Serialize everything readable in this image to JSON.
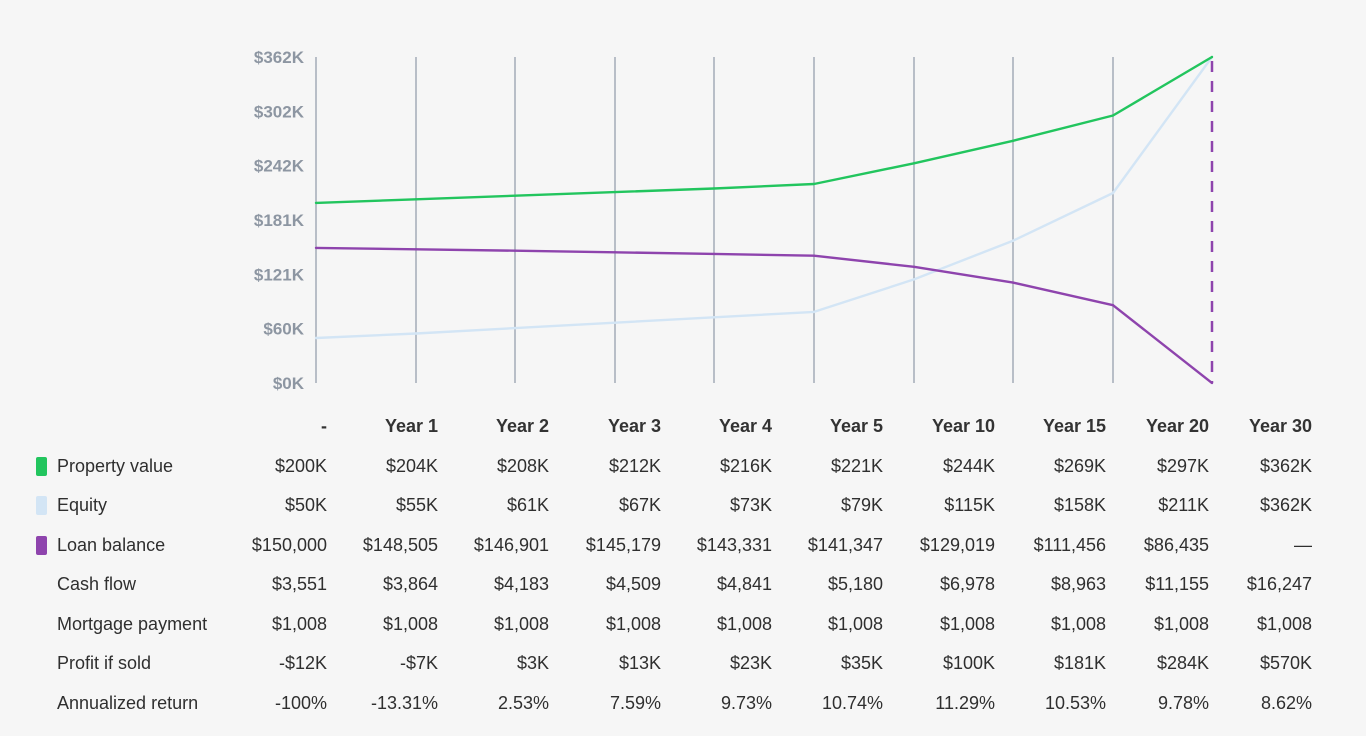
{
  "chart_data": {
    "type": "line",
    "categories": [
      "-",
      "Year 1",
      "Year 2",
      "Year 3",
      "Year 4",
      "Year 5",
      "Year 10",
      "Year 15",
      "Year 20",
      "Year 30"
    ],
    "y_ticks": [
      "$0K",
      "$60K",
      "$121K",
      "$181K",
      "$242K",
      "$302K",
      "$362K"
    ],
    "ylim": [
      0,
      362000
    ],
    "grid": "vertical",
    "series": [
      {
        "name": "Property value",
        "color": "#22c55e",
        "values": [
          200000,
          204000,
          208000,
          212000,
          216000,
          221000,
          244000,
          269000,
          297000,
          362000
        ]
      },
      {
        "name": "Equity",
        "color": "#d3e5f5",
        "values": [
          50000,
          55000,
          61000,
          67000,
          73000,
          79000,
          115000,
          158000,
          211000,
          362000
        ]
      },
      {
        "name": "Loan balance",
        "color": "#8e44ad",
        "values": [
          150000,
          148505,
          146901,
          145179,
          143331,
          141347,
          129019,
          111456,
          86435,
          0
        ]
      }
    ],
    "marker": {
      "category": "Year 30",
      "style": "dashed",
      "color": "#8e44ad"
    }
  },
  "table": {
    "columns": [
      "-",
      "Year 1",
      "Year 2",
      "Year 3",
      "Year 4",
      "Year 5",
      "Year 10",
      "Year 15",
      "Year 20",
      "Year 30"
    ],
    "rows": [
      {
        "label": "Property value",
        "swatch": "#22c55e",
        "cells": [
          "$200K",
          "$204K",
          "$208K",
          "$212K",
          "$216K",
          "$221K",
          "$244K",
          "$269K",
          "$297K",
          "$362K"
        ]
      },
      {
        "label": "Equity",
        "swatch": "#d3e5f5",
        "cells": [
          "$50K",
          "$55K",
          "$61K",
          "$67K",
          "$73K",
          "$79K",
          "$115K",
          "$158K",
          "$211K",
          "$362K"
        ]
      },
      {
        "label": "Loan balance",
        "swatch": "#8e44ad",
        "cells": [
          "$150,000",
          "$148,505",
          "$146,901",
          "$145,179",
          "$143,331",
          "$141,347",
          "$129,019",
          "$111,456",
          "$86,435",
          "—"
        ]
      },
      {
        "label": "Cash flow",
        "swatch": "",
        "cells": [
          "$3,551",
          "$3,864",
          "$4,183",
          "$4,509",
          "$4,841",
          "$5,180",
          "$6,978",
          "$8,963",
          "$11,155",
          "$16,247"
        ]
      },
      {
        "label": "Mortgage payment",
        "swatch": "",
        "cells": [
          "$1,008",
          "$1,008",
          "$1,008",
          "$1,008",
          "$1,008",
          "$1,008",
          "$1,008",
          "$1,008",
          "$1,008",
          "$1,008"
        ]
      },
      {
        "label": "Profit if sold",
        "swatch": "",
        "cells": [
          "-$12K",
          "-$7K",
          "$3K",
          "$13K",
          "$23K",
          "$35K",
          "$100K",
          "$181K",
          "$284K",
          "$570K"
        ]
      },
      {
        "label": "Annualized return",
        "swatch": "",
        "cells": [
          "-100%",
          "-13.31%",
          "2.53%",
          "7.59%",
          "9.73%",
          "10.74%",
          "11.29%",
          "10.53%",
          "9.78%",
          "8.62%"
        ]
      }
    ]
  }
}
